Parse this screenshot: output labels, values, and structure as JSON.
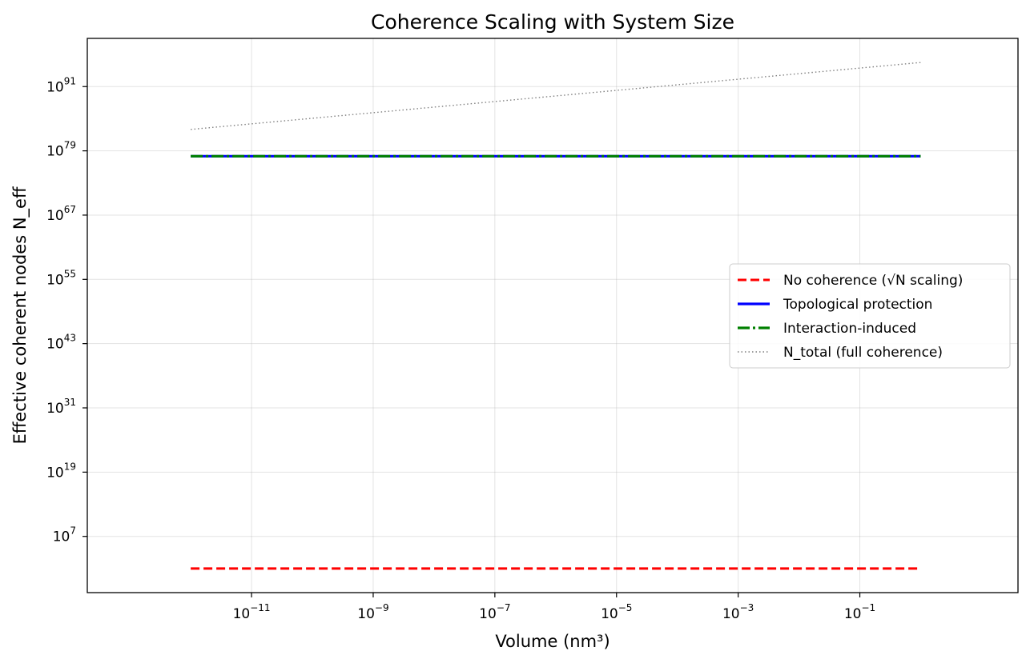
{
  "chart_data": {
    "type": "line",
    "title": "Coherence Scaling with System Size",
    "xlabel": "Volume (nm³)",
    "ylabel": "Effective coherent nodes N_eff",
    "x_scale": "log",
    "y_scale": "log",
    "xlim_exp": [
      -13.7,
      1.6
    ],
    "ylim_exp": [
      -3.5,
      100
    ],
    "x_ticks": [
      {
        "base": "10",
        "exp": "−11",
        "value_exp": -11
      },
      {
        "base": "10",
        "exp": "−9",
        "value_exp": -9
      },
      {
        "base": "10",
        "exp": "−7",
        "value_exp": -7
      },
      {
        "base": "10",
        "exp": "−5",
        "value_exp": -5
      },
      {
        "base": "10",
        "exp": "−3",
        "value_exp": -3
      },
      {
        "base": "10",
        "exp": "−1",
        "value_exp": -1
      }
    ],
    "y_ticks": [
      {
        "base": "10",
        "exp": "7",
        "value_exp": 7
      },
      {
        "base": "10",
        "exp": "19",
        "value_exp": 19
      },
      {
        "base": "10",
        "exp": "31",
        "value_exp": 31
      },
      {
        "base": "10",
        "exp": "43",
        "value_exp": 43
      },
      {
        "base": "10",
        "exp": "55",
        "value_exp": 55
      },
      {
        "base": "10",
        "exp": "67",
        "value_exp": 67
      },
      {
        "base": "10",
        "exp": "79",
        "value_exp": 79
      },
      {
        "base": "10",
        "exp": "91",
        "value_exp": 91
      }
    ],
    "grid": true,
    "legend_position": "center-right",
    "series": [
      {
        "name": "No coherence (√N scaling)",
        "color": "#ff0000",
        "style": "dashed",
        "x_exp": [
          -12,
          0
        ],
        "y_exp": [
          1,
          1
        ]
      },
      {
        "name": "Topological protection",
        "color": "#0000ff",
        "style": "solid",
        "x_exp": [
          -12,
          0
        ],
        "y_exp": [
          78,
          78
        ]
      },
      {
        "name": "Interaction-induced",
        "color": "#008000",
        "style": "dashdot",
        "x_exp": [
          -12,
          0
        ],
        "y_exp": [
          78,
          78
        ]
      },
      {
        "name": "N_total (full coherence)",
        "color": "#808080",
        "style": "dotted",
        "x_exp": [
          -12,
          0
        ],
        "y_exp": [
          83,
          95.5
        ]
      }
    ]
  }
}
